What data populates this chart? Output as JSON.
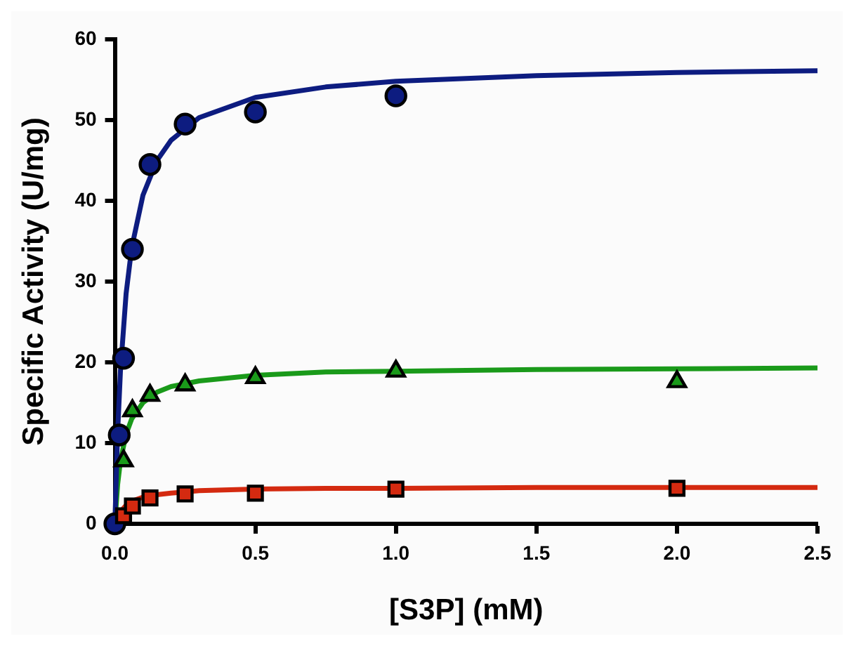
{
  "chart_data": {
    "type": "scatter",
    "xlabel": "[S3P] (mM)",
    "ylabel": "Specific Activity (U/mg)",
    "xlim": [
      0,
      2.5
    ],
    "xticks": [
      {
        "value": 0,
        "label": "0.0"
      },
      0.5,
      {
        "value": 1,
        "label": "1.0"
      },
      1.5,
      {
        "value": 2,
        "label": "2.0"
      },
      2.5
    ],
    "ylim": [
      0,
      60
    ],
    "yticks": [
      0,
      10,
      20,
      30,
      40,
      50,
      60
    ],
    "grid": false,
    "legend": false,
    "series": [
      {
        "type": "line",
        "color": "#0d1c80",
        "marker": "none",
        "x": [
          0,
          0.01,
          0.02,
          0.04,
          0.06,
          0.1,
          0.15,
          0.2,
          0.3,
          0.5,
          0.75,
          1,
          1.5,
          2,
          2.5
        ],
        "values": [
          0,
          11.4,
          19,
          28.5,
          34.2,
          40.7,
          45,
          47.5,
          50.3,
          52.8,
          54.1,
          54.8,
          55.5,
          55.9,
          56.1
        ]
      },
      {
        "type": "line",
        "color": "#1a9a1a",
        "marker": "none",
        "x": [
          0,
          0.01,
          0.02,
          0.04,
          0.06,
          0.1,
          0.15,
          0.2,
          0.3,
          0.5,
          0.75,
          1,
          1.5,
          2,
          2.5
        ],
        "values": [
          0,
          4.9,
          7.8,
          11.1,
          13,
          15,
          16.3,
          17,
          17.7,
          18.4,
          18.8,
          18.9,
          19.1,
          19.2,
          19.3
        ]
      },
      {
        "type": "line",
        "color": "#d42a10",
        "marker": "none",
        "x": [
          0,
          0.01,
          0.02,
          0.04,
          0.06,
          0.1,
          0.15,
          0.2,
          0.3,
          0.5,
          0.75,
          1,
          1.5,
          2,
          2.5
        ],
        "values": [
          0,
          0.9,
          1.5,
          2.3,
          2.8,
          3.3,
          3.6,
          3.8,
          4.1,
          4.3,
          4.4,
          4.4,
          4.5,
          4.5,
          4.5
        ]
      },
      {
        "color": "#0d1c80",
        "marker": "circle",
        "x": [
          0,
          0.0156,
          0.031,
          0.0625,
          0.125,
          0.25,
          0.5,
          1
        ],
        "values": [
          0,
          11,
          20.5,
          34,
          44.5,
          49.5,
          51,
          53
        ]
      },
      {
        "color": "#1a9a1a",
        "marker": "triangle",
        "x": [
          0.031,
          0.0625,
          0.125,
          0.25,
          0.5,
          1,
          2
        ],
        "values": [
          7.8,
          14,
          15.9,
          17.2,
          18.1,
          18.9,
          17.6
        ]
      },
      {
        "color": "#d42a10",
        "marker": "square",
        "x": [
          0.031,
          0.0625,
          0.125,
          0.25,
          0.5,
          1,
          2
        ],
        "values": [
          1,
          2.2,
          3.2,
          3.7,
          3.8,
          4.3,
          4.4
        ]
      }
    ]
  }
}
